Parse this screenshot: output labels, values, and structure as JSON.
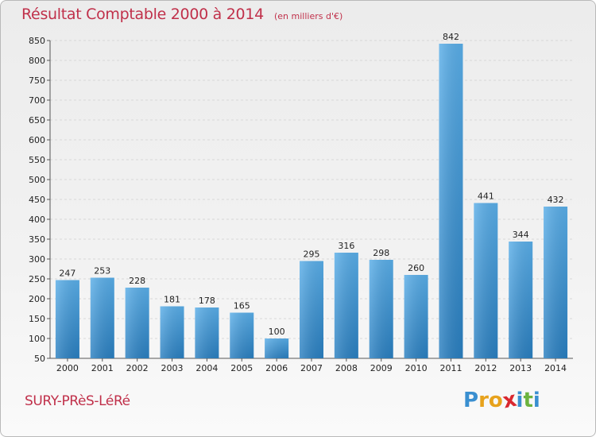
{
  "header": {
    "title": "Résultat Comptable 2000 à 2014",
    "subtitle": "(en milliers d'€)"
  },
  "footer": {
    "place": "SURY-PRèS-LéRé",
    "logo_letters": [
      "P",
      "r",
      "o",
      "x",
      "i",
      "t",
      "i"
    ],
    "logo_colors": [
      "#3a8fd0",
      "#e7a21c",
      "#e7a21c",
      "#d9282f",
      "#3a8fd0",
      "#6cb33f",
      "#3a8fd0"
    ]
  },
  "colors": {
    "bar_light": "#5aaee8",
    "bar_dark": "#2a7fc0",
    "title": "#c0304a",
    "grid": "#d8d8d8"
  },
  "chart_data": {
    "type": "bar",
    "title": "Résultat Comptable 2000 à 2014",
    "subtitle": "(en milliers d'€)",
    "categories": [
      "2000",
      "2001",
      "2002",
      "2003",
      "2004",
      "2005",
      "2006",
      "2007",
      "2008",
      "2009",
      "2010",
      "2011",
      "2012",
      "2013",
      "2014"
    ],
    "values": [
      247,
      253,
      228,
      181,
      178,
      165,
      100,
      295,
      316,
      298,
      260,
      842,
      441,
      344,
      432
    ],
    "ylim": [
      50,
      850
    ],
    "yticks": [
      50,
      100,
      150,
      200,
      250,
      300,
      350,
      400,
      450,
      500,
      550,
      600,
      650,
      700,
      750,
      800,
      850
    ],
    "grid": true,
    "xlabel": "",
    "ylabel": ""
  }
}
